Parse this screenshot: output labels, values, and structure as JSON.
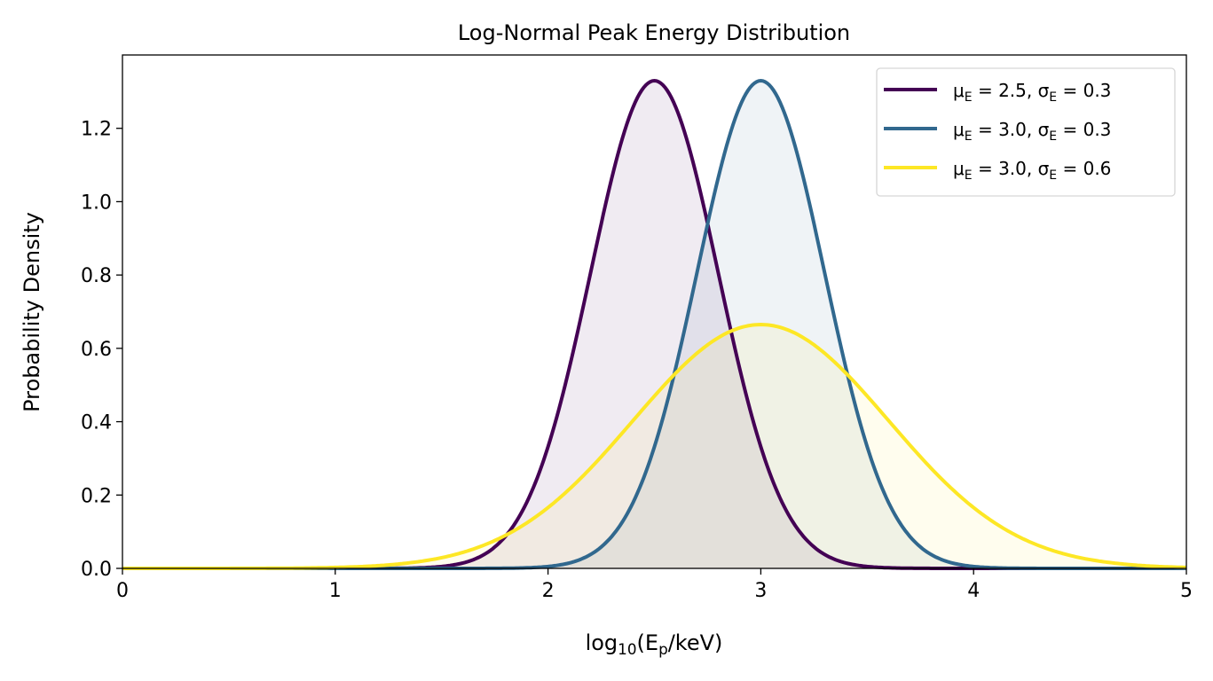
{
  "chart_data": {
    "type": "line",
    "title": "Log-Normal Peak Energy Distribution",
    "xlabel": "log_{10}(E_{p}/keV)",
    "ylabel": "Probability Density",
    "xlim": [
      0,
      5
    ],
    "ylim": [
      0,
      1.4
    ],
    "xticks": [
      "0",
      "1",
      "2",
      "3",
      "4",
      "5"
    ],
    "yticks": [
      "0.0",
      "0.2",
      "0.4",
      "0.6",
      "0.8",
      "1.0",
      "1.2"
    ],
    "grid": false,
    "legend_position": "top-right",
    "filled_under_curves": true,
    "fill_opacity": 0.08,
    "series": [
      {
        "name": "μ_{E} = 2.5, σ_{E} = 0.3",
        "mu": 2.5,
        "sigma": 0.3,
        "peak": 1.33,
        "color": "#440154"
      },
      {
        "name": "μ_{E} = 3.0, σ_{E} = 0.3",
        "mu": 3.0,
        "sigma": 0.3,
        "peak": 1.33,
        "color": "#31688e"
      },
      {
        "name": "μ_{E} = 3.0, σ_{E} = 0.6",
        "mu": 3.0,
        "sigma": 0.6,
        "peak": 0.665,
        "color": "#fde725"
      }
    ]
  }
}
